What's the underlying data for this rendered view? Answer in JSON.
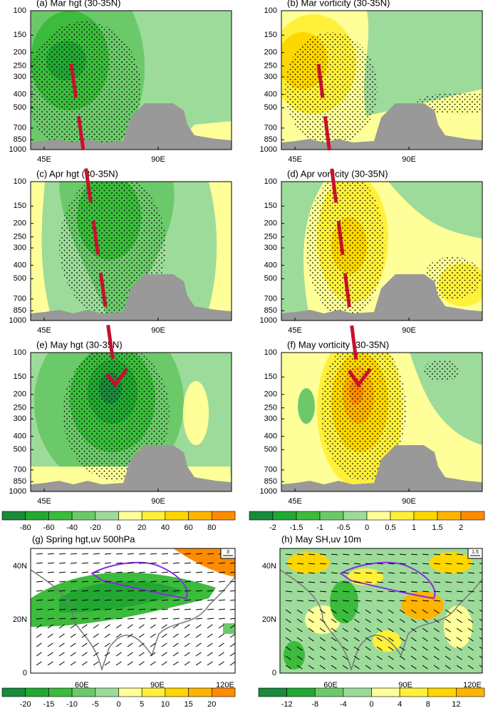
{
  "pressure_levels": {
    "ticks": [
      100,
      150,
      200,
      250,
      300,
      400,
      500,
      700,
      850,
      1000
    ],
    "lim": [
      1000,
      100
    ],
    "log": true
  },
  "panels": [
    {
      "title": "(a) Mar hgt (30-35N)",
      "xticks": [
        "45E",
        "90E"
      ]
    },
    {
      "title": "(b) Mar vorticity (30-35N)",
      "xticks": [
        "45E",
        "90E"
      ]
    },
    {
      "title": "(c) Apr hgt (30-35N)",
      "xticks": [
        "45E",
        "90E"
      ]
    },
    {
      "title": "(d) Apr vorticity (30-35N)",
      "xticks": [
        "45E",
        "90E"
      ]
    },
    {
      "title": "(e) May hgt (30-35N)",
      "xticks": [
        "45E",
        "90E"
      ]
    },
    {
      "title": "(f) May vorticity (30-35N)",
      "xticks": [
        "45E",
        "90E"
      ]
    }
  ],
  "colorbars": [
    {
      "labels": [
        "-80",
        "-60",
        "-40",
        "-20",
        "0",
        "20",
        "40",
        "60",
        "80"
      ],
      "colors": [
        "#1a8a3c",
        "#22a832",
        "#3cbb3c",
        "#6cc96a",
        "#9ddb9a",
        "#ffff99",
        "#fff03c",
        "#ffd700",
        "#ffb400",
        "#ff8c00"
      ]
    },
    {
      "labels": [
        "-2",
        "-1.5",
        "-1",
        "-0.5",
        "0",
        "0.5",
        "1",
        "1.5",
        "2"
      ],
      "colors": [
        "#1a8a3c",
        "#22a832",
        "#3cbb3c",
        "#6cc96a",
        "#9ddb9a",
        "#ffff99",
        "#fff03c",
        "#ffd700",
        "#ffb400",
        "#ff8c00"
      ]
    },
    {
      "labels": [
        "-20",
        "-15",
        "-10",
        "-5",
        "0",
        "5",
        "10",
        "15",
        "20"
      ],
      "colors": [
        "#1a8a3c",
        "#22a832",
        "#3cbb3c",
        "#6cc96a",
        "#9ddb9a",
        "#ffff99",
        "#fff03c",
        "#ffd700",
        "#ffb400",
        "#ff8c00"
      ]
    },
    {
      "labels": [
        "-12",
        "-8",
        "-4",
        "0",
        "4",
        "8",
        "12"
      ],
      "colors": [
        "#1a8a3c",
        "#22a832",
        "#6cc96a",
        "#9ddb9a",
        "#ffff99",
        "#fff03c",
        "#ffd700",
        "#ffb400"
      ]
    }
  ],
  "maps": [
    {
      "title": "(g) Spring hgt,uv 500hPa",
      "yticks": [
        "0",
        "20N",
        "40N"
      ],
      "xticks": [
        "60E",
        "90E",
        "120E"
      ],
      "reference": "3"
    },
    {
      "title": "(h) May SH,uv 10m",
      "yticks": [
        "0",
        "20N",
        "40N"
      ],
      "xticks": [
        "60E",
        "90E",
        "120E"
      ],
      "reference": "1.5"
    }
  ]
}
